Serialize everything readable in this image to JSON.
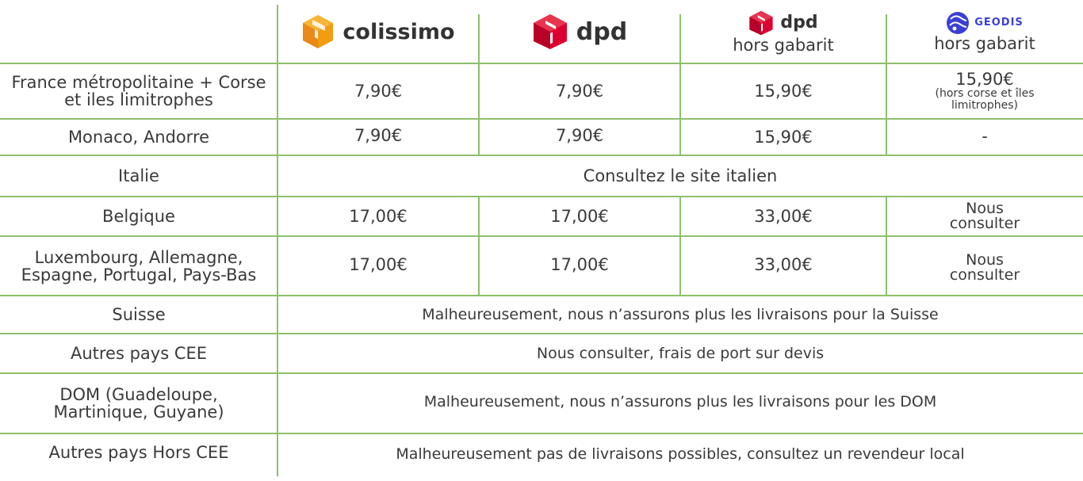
{
  "header": {
    "colissimo": {
      "name": "colissimo",
      "icon": "colissimo-box-icon",
      "color": "#f6a01a"
    },
    "dpd": {
      "name": "dpd",
      "icon": "dpd-cube-icon",
      "color": "#dc0032"
    },
    "dpd_hg": {
      "name": "dpd",
      "icon": "dpd-cube-icon",
      "sub": "hors gabarit",
      "color": "#dc0032"
    },
    "geodis_hg": {
      "name": "GEODIS",
      "icon": "geodis-globe-icon",
      "sub": "hors gabarit",
      "color": "#3a3fd8"
    }
  },
  "rows": [
    {
      "label": "France métropolitaine + Corse et iles limitrophes",
      "colissimo": "7,90€",
      "dpd": "7,90€",
      "dpd_hg": "15,90€",
      "geodis": "15,90€",
      "geodis_note": "(hors corse et îles limitrophes)"
    },
    {
      "label": "Monaco, Andorre",
      "colissimo": "7,90€",
      "dpd": "7,90€",
      "dpd_hg": "15,90€",
      "geodis": "-"
    },
    {
      "label": "Italie",
      "span": "Consultez le site italien"
    },
    {
      "label": "Belgique",
      "colissimo": "17,00€",
      "dpd": "17,00€",
      "dpd_hg": "33,00€",
      "geodis": "Nous consulter"
    },
    {
      "label": "Luxembourg, Allemagne, Espagne, Portugal, Pays-Bas",
      "colissimo": "17,00€",
      "dpd": "17,00€",
      "dpd_hg": "33,00€",
      "geodis": "Nous consulter"
    },
    {
      "label": "Suisse",
      "span": "Malheureusement, nous n’assurons plus les livraisons pour la Suisse"
    },
    {
      "label": "Autres pays CEE",
      "span": "Nous consulter, frais de port sur devis"
    },
    {
      "label": "DOM (Guadeloupe, Martinique, Guyane)",
      "span": "Malheureusement, nous n’assurons plus les livraisons pour les DOM"
    },
    {
      "label": "Autres pays Hors CEE",
      "span": "Malheureusement pas de livraisons possibles, consultez un revendeur local"
    }
  ]
}
